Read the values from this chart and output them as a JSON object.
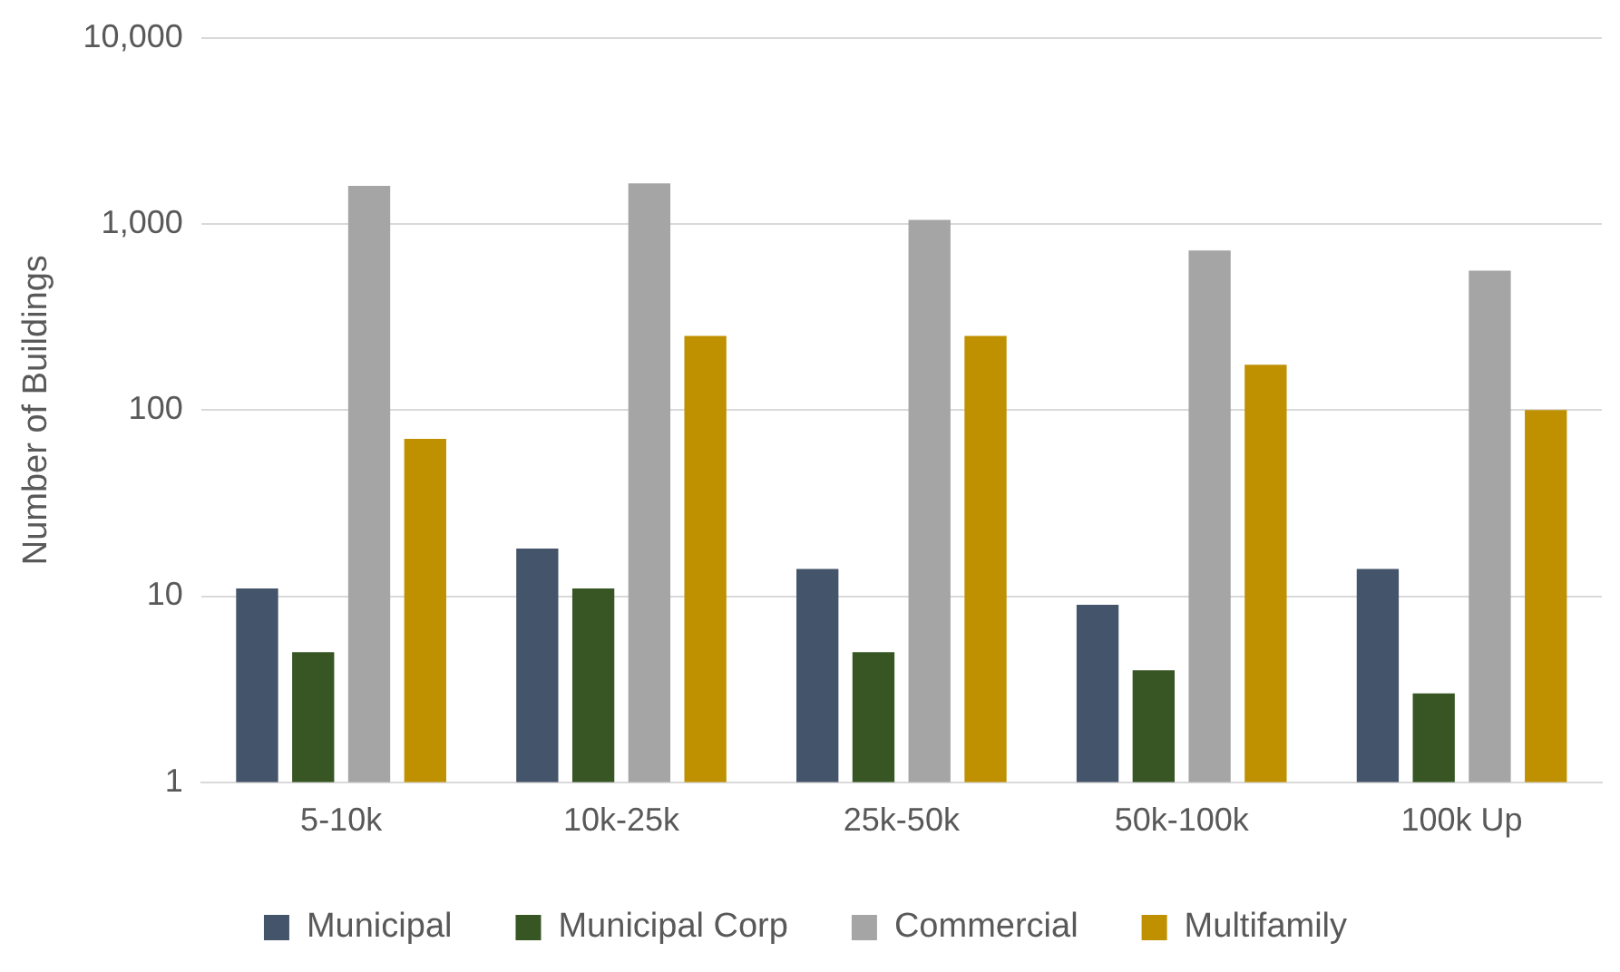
{
  "chart_data": {
    "type": "bar",
    "ylabel": "Number of Buildings",
    "categories": [
      "5-10k",
      "10k-25k",
      "25k-50k",
      "50k-100k",
      "100k Up"
    ],
    "series": [
      {
        "name": "Municipal",
        "color": "#44546a",
        "values": [
          11,
          18,
          14,
          9,
          14
        ]
      },
      {
        "name": "Municipal Corp",
        "color": "#375623",
        "values": [
          5,
          11,
          5,
          4,
          3
        ]
      },
      {
        "name": "Commercial",
        "color": "#a5a5a5",
        "values": [
          1600,
          1650,
          1050,
          720,
          560
        ]
      },
      {
        "name": "Multifamily",
        "color": "#bf9000",
        "values": [
          70,
          250,
          250,
          175,
          100
        ]
      }
    ],
    "log": "y",
    "ylim": [
      1,
      10000
    ],
    "yticks": [
      1,
      10,
      100,
      {
        "value": 1000,
        "label": "1,000"
      },
      {
        "value": 10000,
        "label": "10,000"
      }
    ],
    "grid": "y",
    "legend": "bottom"
  }
}
